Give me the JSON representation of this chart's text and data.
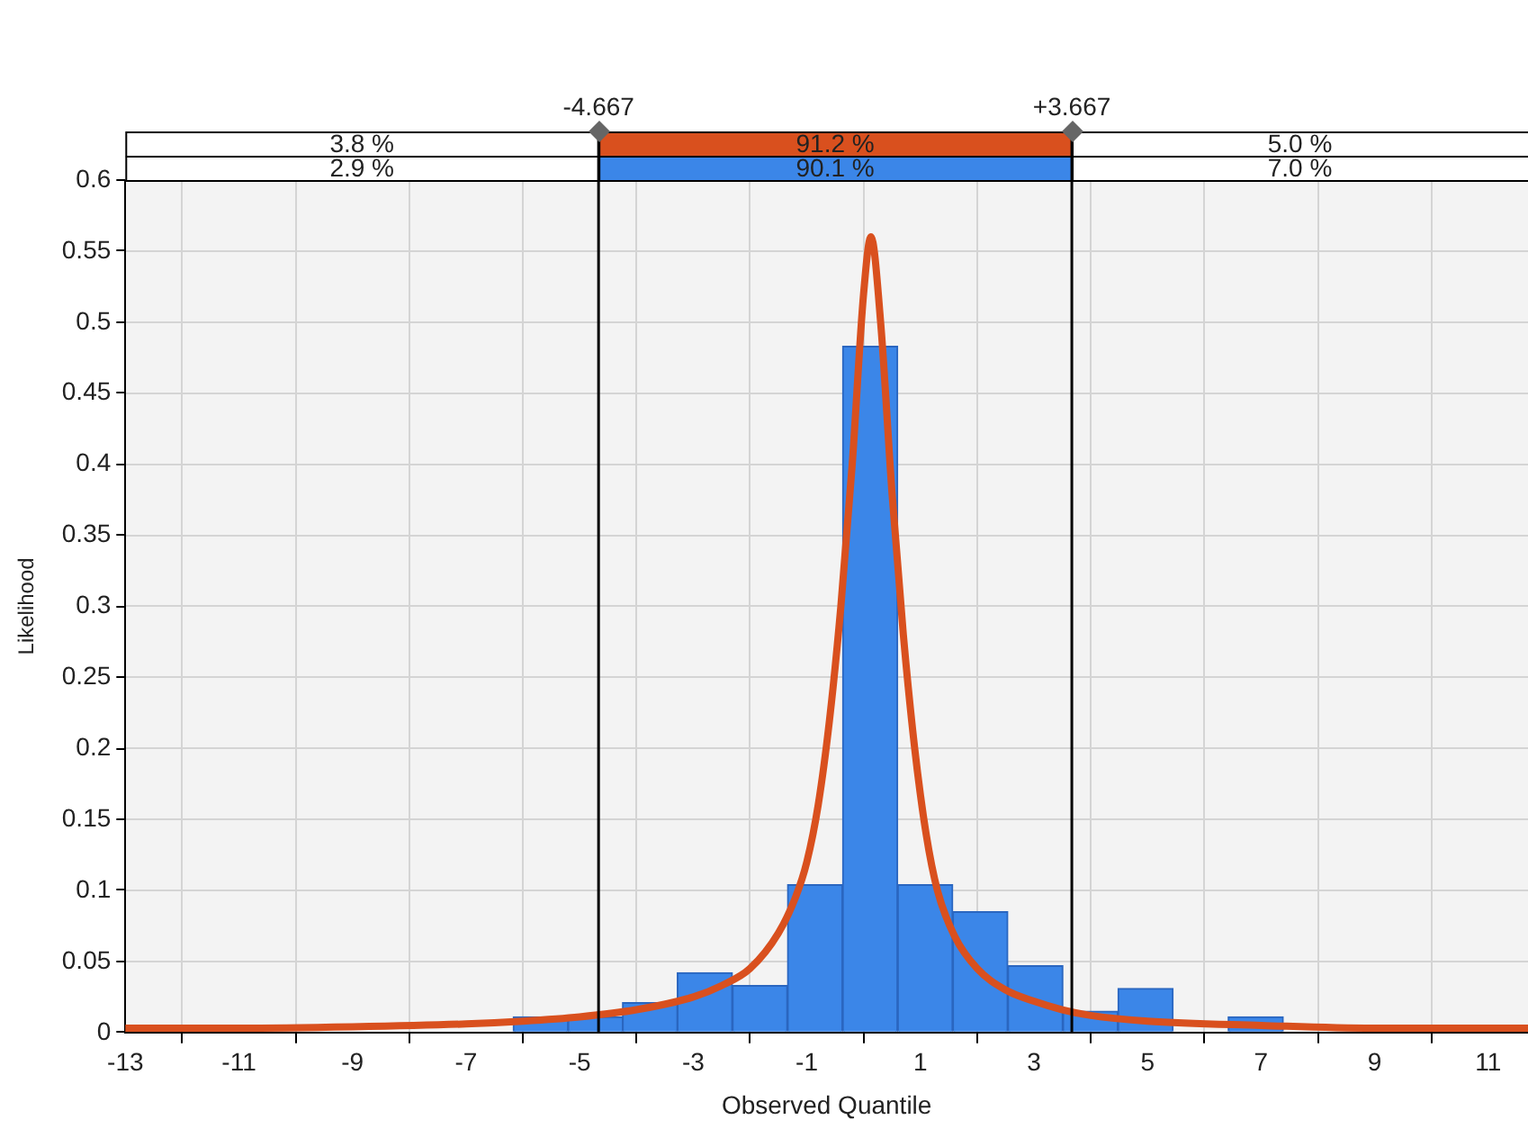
{
  "chart_data": {
    "type": "histogram",
    "xlabel": "Observed Quantile",
    "ylabel": "Likelihood",
    "bins": [
      -6.17,
      -5.2,
      -4.24,
      -3.28,
      -2.31,
      -1.34,
      -0.37,
      0.6,
      1.57,
      2.54,
      3.51,
      4.48,
      5.45,
      6.42,
      7.39
    ],
    "values": [
      0.011,
      0.011,
      0.021,
      0.042,
      0.033,
      0.104,
      0.483,
      0.104,
      0.085,
      0.047,
      0.015,
      0.031,
      0,
      0.011
    ],
    "color": "#3b86e8",
    "series": [
      {
        "type": "line",
        "color": "#d9501e",
        "x": [
          -13,
          -11,
          -9,
          -7,
          -6,
          -5,
          -4,
          -3,
          -2.5,
          -2,
          -1.5,
          -1.2,
          -1,
          -0.8,
          -0.6,
          -0.4,
          -0.2,
          0,
          0.13,
          0.3,
          0.5,
          0.7,
          0.9,
          1.1,
          1.3,
          1.6,
          2,
          2.5,
          3,
          3.5,
          4,
          5,
          7,
          9,
          11,
          11.7
        ],
        "values": [
          0.003,
          0.003,
          0.004,
          0.006,
          0.008,
          0.011,
          0.016,
          0.025,
          0.033,
          0.045,
          0.07,
          0.095,
          0.12,
          0.16,
          0.22,
          0.3,
          0.4,
          0.52,
          0.56,
          0.5,
          0.38,
          0.28,
          0.2,
          0.14,
          0.1,
          0.068,
          0.045,
          0.03,
          0.022,
          0.016,
          0.012,
          0.008,
          0.005,
          0.003,
          0.003,
          0.003
        ]
      }
    ],
    "marker": "none",
    "xlim": [
      -13,
      11.7
    ],
    "xticks": [
      -13,
      -11,
      -9,
      -7,
      -5,
      -3,
      -1,
      1,
      3,
      5,
      7,
      9,
      11
    ],
    "ylim": [
      0,
      0.6
    ],
    "yticks": [
      0,
      0.05,
      0.1,
      0.15,
      0.2,
      0.25,
      0.3,
      0.35,
      0.4,
      0.45,
      0.5,
      0.55,
      0.6
    ],
    "grid": true,
    "legend": false,
    "ref_lines": [
      {
        "axis": "x",
        "value": -4.667,
        "label": "-4.667",
        "color": "#000000"
      },
      {
        "axis": "x",
        "value": 3.667,
        "label": "+3.667",
        "color": "#000000"
      }
    ],
    "annotations": [
      "3.8 %",
      "91.2 %",
      "5.0 %",
      "2.9 %",
      "90.1 %",
      "7.0 %"
    ]
  }
}
